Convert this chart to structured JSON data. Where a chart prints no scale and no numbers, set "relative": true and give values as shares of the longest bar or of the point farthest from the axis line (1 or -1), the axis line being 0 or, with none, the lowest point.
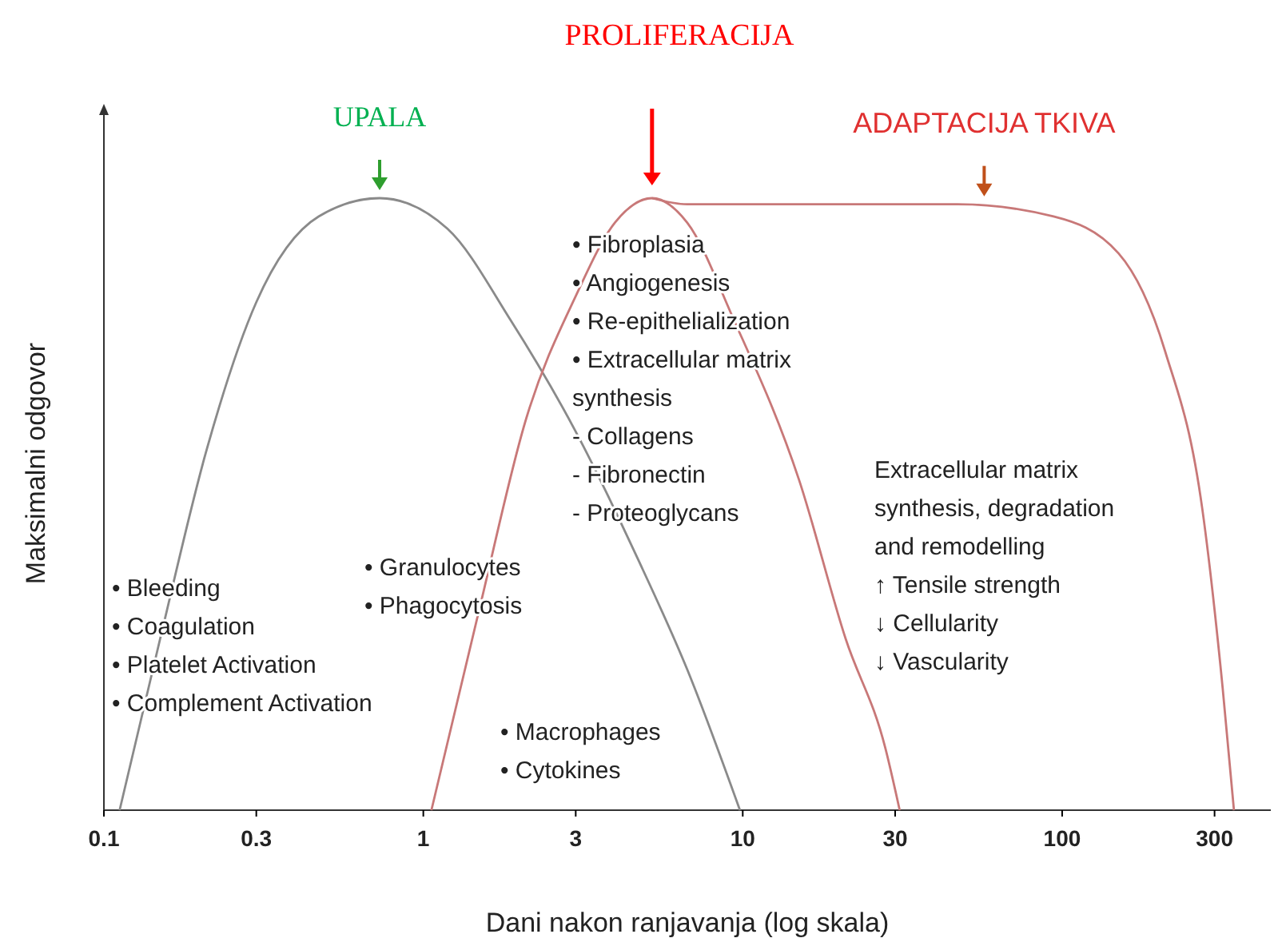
{
  "chart_data": {
    "type": "line",
    "title": "PROLIFERACIJA",
    "xlabel": "Dani nakon ranjavanja (log skala)",
    "ylabel": "Maksimalni odgovor",
    "relative": true,
    "log": "x",
    "xlim": [
      0.1,
      450
    ],
    "xticks": [
      0.1,
      0.3,
      1,
      3,
      10,
      30,
      100,
      300
    ],
    "grid": false,
    "marker": "none",
    "line_style": "solid",
    "series": [
      {
        "color": "#8a8a8a",
        "x": [
          0.112,
          0.15,
          0.21,
          0.3,
          0.47,
          0.73,
          1.19,
          1.88,
          2.99,
          4.7,
          6.7,
          9.8
        ],
        "values": [
          0,
          0.28,
          0.59,
          0.83,
          0.97,
          1,
          0.95,
          0.8,
          0.62,
          0.41,
          0.23,
          0
        ]
      },
      {
        "color": "#c87878",
        "x": [
          1.06,
          1.5,
          2.1,
          3.0,
          3.98,
          5.2,
          6.7,
          9.4,
          15,
          21,
          28,
          31
        ],
        "values": [
          0,
          0.33,
          0.64,
          0.84,
          0.96,
          1,
          0.96,
          0.8,
          0.54,
          0.28,
          0.1,
          0
        ]
      },
      {
        "color": "#c87878",
        "x": [
          5.2,
          6.7,
          15,
          47,
          94,
          150,
          210,
          275,
          318,
          345
        ],
        "values": [
          1,
          0.99,
          0.99,
          0.99,
          0.97,
          0.91,
          0.75,
          0.49,
          0.2,
          0
        ]
      }
    ],
    "annotations": [
      {
        "text": "UPALA",
        "x": 0.73,
        "y": 1
      },
      {
        "text": "ADAPTACIJA TKIVA",
        "x": 57,
        "y": 0.99
      },
      "• Bleeding\n• Coagulation\n• Platelet Activation\n• Complement Activation",
      "• Granulocytes\n• Phagocytosis",
      "• Macrophages\n• Cytokines",
      "• Fibroplasia\n• Angiogenesis\n• Re-epithelialization\n• Extracellular matrix\nsynthesis\n- Collagens\n- Fibronectin\n- Proteoglycans",
      "Extracellular matrix\nsynthesis, degradation\nand remodelling\n↑ Tensile strength\n↓ Cellularity\n↓ Vascularity"
    ]
  }
}
